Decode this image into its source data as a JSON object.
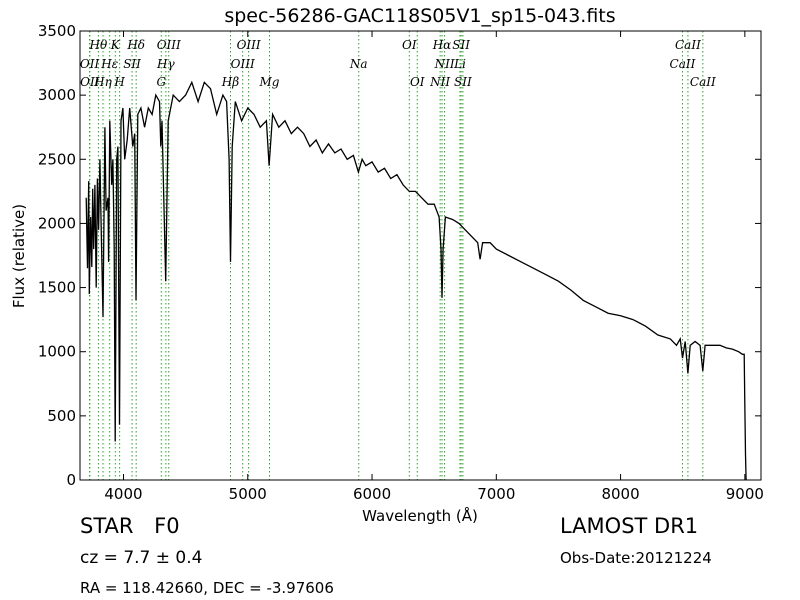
{
  "chart_data": {
    "type": "line",
    "title": "spec-56286-GAC118S05V1_sp15-043.fits",
    "xlabel": "Wavelength (Å)",
    "ylabel": "Flux (relative)",
    "xlim": [
      3650,
      9130
    ],
    "ylim": [
      0,
      3500
    ],
    "xticks": [
      4000,
      5000,
      6000,
      7000,
      8000,
      9000
    ],
    "yticks": [
      0,
      500,
      1000,
      1500,
      2000,
      2500,
      3000,
      3500
    ],
    "grid": false,
    "line_color": "#000000",
    "marker_line_color": "#2ca02c",
    "series": [
      {
        "points": [
          [
            3700,
            2200
          ],
          [
            3710,
            1650
          ],
          [
            3720,
            2330
          ],
          [
            3725,
            1450
          ],
          [
            3735,
            2050
          ],
          [
            3745,
            1660
          ],
          [
            3752,
            2270
          ],
          [
            3760,
            1800
          ],
          [
            3770,
            2300
          ],
          [
            3780,
            1500
          ],
          [
            3790,
            2350
          ],
          [
            3800,
            1950
          ],
          [
            3810,
            2500
          ],
          [
            3820,
            2000
          ],
          [
            3835,
            1270
          ],
          [
            3850,
            2750
          ],
          [
            3860,
            2100
          ],
          [
            3875,
            2200
          ],
          [
            3880,
            1700
          ],
          [
            3890,
            2800
          ],
          [
            3905,
            2300
          ],
          [
            3915,
            2500
          ],
          [
            3925,
            1800
          ],
          [
            3933,
            300
          ],
          [
            3945,
            2500
          ],
          [
            3955,
            2600
          ],
          [
            3968,
            430
          ],
          [
            3980,
            2800
          ],
          [
            3995,
            2900
          ],
          [
            4010,
            2500
          ],
          [
            4030,
            2650
          ],
          [
            4050,
            2900
          ],
          [
            4075,
            2600
          ],
          [
            4090,
            2700
          ],
          [
            4101,
            1400
          ],
          [
            4115,
            2850
          ],
          [
            4140,
            2900
          ],
          [
            4170,
            2750
          ],
          [
            4200,
            2900
          ],
          [
            4230,
            2850
          ],
          [
            4260,
            3000
          ],
          [
            4290,
            2950
          ],
          [
            4300,
            2600
          ],
          [
            4310,
            2800
          ],
          [
            4340,
            1550
          ],
          [
            4360,
            2800
          ],
          [
            4400,
            3000
          ],
          [
            4450,
            2950
          ],
          [
            4500,
            3000
          ],
          [
            4550,
            3100
          ],
          [
            4600,
            2950
          ],
          [
            4650,
            3100
          ],
          [
            4700,
            3050
          ],
          [
            4750,
            2850
          ],
          [
            4800,
            3000
          ],
          [
            4830,
            2950
          ],
          [
            4850,
            2500
          ],
          [
            4861,
            1700
          ],
          [
            4875,
            2600
          ],
          [
            4900,
            2950
          ],
          [
            4950,
            2800
          ],
          [
            5000,
            2900
          ],
          [
            5050,
            2850
          ],
          [
            5100,
            2750
          ],
          [
            5150,
            2800
          ],
          [
            5172,
            2450
          ],
          [
            5200,
            2850
          ],
          [
            5250,
            2750
          ],
          [
            5300,
            2800
          ],
          [
            5350,
            2700
          ],
          [
            5400,
            2750
          ],
          [
            5450,
            2700
          ],
          [
            5500,
            2600
          ],
          [
            5550,
            2650
          ],
          [
            5600,
            2550
          ],
          [
            5650,
            2620
          ],
          [
            5700,
            2550
          ],
          [
            5750,
            2580
          ],
          [
            5800,
            2500
          ],
          [
            5850,
            2530
          ],
          [
            5890,
            2400
          ],
          [
            5920,
            2500
          ],
          [
            5950,
            2450
          ],
          [
            6000,
            2480
          ],
          [
            6050,
            2400
          ],
          [
            6100,
            2430
          ],
          [
            6150,
            2350
          ],
          [
            6200,
            2380
          ],
          [
            6250,
            2300
          ],
          [
            6300,
            2250
          ],
          [
            6350,
            2250
          ],
          [
            6400,
            2200
          ],
          [
            6450,
            2150
          ],
          [
            6500,
            2150
          ],
          [
            6540,
            2050
          ],
          [
            6555,
            1800
          ],
          [
            6563,
            1420
          ],
          [
            6572,
            1800
          ],
          [
            6590,
            2050
          ],
          [
            6650,
            2030
          ],
          [
            6700,
            2000
          ],
          [
            6750,
            1950
          ],
          [
            6800,
            1900
          ],
          [
            6850,
            1850
          ],
          [
            6870,
            1720
          ],
          [
            6890,
            1850
          ],
          [
            6950,
            1850
          ],
          [
            7000,
            1800
          ],
          [
            7100,
            1750
          ],
          [
            7200,
            1700
          ],
          [
            7300,
            1650
          ],
          [
            7400,
            1600
          ],
          [
            7500,
            1550
          ],
          [
            7600,
            1480
          ],
          [
            7700,
            1400
          ],
          [
            7800,
            1350
          ],
          [
            7900,
            1300
          ],
          [
            8000,
            1280
          ],
          [
            8100,
            1250
          ],
          [
            8200,
            1200
          ],
          [
            8300,
            1130
          ],
          [
            8400,
            1100
          ],
          [
            8450,
            1050
          ],
          [
            8480,
            1100
          ],
          [
            8498,
            950
          ],
          [
            8520,
            1080
          ],
          [
            8542,
            830
          ],
          [
            8560,
            1050
          ],
          [
            8600,
            1080
          ],
          [
            8640,
            1050
          ],
          [
            8662,
            850
          ],
          [
            8680,
            1050
          ],
          [
            8750,
            1050
          ],
          [
            8800,
            1050
          ],
          [
            8850,
            1030
          ],
          [
            8900,
            1020
          ],
          [
            8950,
            1000
          ],
          [
            8980,
            980
          ],
          [
            8995,
            980
          ],
          [
            9000,
            600
          ],
          [
            9005,
            200
          ],
          [
            9010,
            0
          ]
        ]
      }
    ],
    "lines": [
      {
        "name": "Hθ",
        "x": 3798,
        "row": 0
      },
      {
        "name": "K",
        "x": 3934,
        "row": 0
      },
      {
        "name": "Hδ",
        "x": 4102,
        "row": 0
      },
      {
        "name": "OIII",
        "x": 4364,
        "row": 0
      },
      {
        "name": "OIII",
        "x": 5007,
        "row": 0
      },
      {
        "name": "OI",
        "x": 6300,
        "row": 0
      },
      {
        "name": "Hα",
        "x": 6563,
        "row": 0
      },
      {
        "name": "SII",
        "x": 6717,
        "row": 0
      },
      {
        "name": "CaII",
        "x": 8542,
        "row": 0
      },
      {
        "name": "OII",
        "x": 3727,
        "row": 1
      },
      {
        "name": "Hε",
        "x": 3889,
        "row": 1
      },
      {
        "name": "SII",
        "x": 4069,
        "row": 1
      },
      {
        "name": "Hγ",
        "x": 4341,
        "row": 1
      },
      {
        "name": "OIII",
        "x": 4959,
        "row": 1
      },
      {
        "name": "Na",
        "x": 5893,
        "row": 1
      },
      {
        "name": "NII",
        "x": 6584,
        "row": 1
      },
      {
        "name": "Li",
        "x": 6708,
        "row": 1
      },
      {
        "name": "CaII",
        "x": 8498,
        "row": 1
      },
      {
        "name": "OII",
        "x": 3729,
        "row": 2
      },
      {
        "name": "Hη",
        "x": 3835,
        "row": 2
      },
      {
        "name": "H",
        "x": 3969,
        "row": 2
      },
      {
        "name": "G",
        "x": 4304,
        "row": 2
      },
      {
        "name": "Hβ",
        "x": 4861,
        "row": 2
      },
      {
        "name": "Mg",
        "x": 5175,
        "row": 2
      },
      {
        "name": "OI",
        "x": 6364,
        "row": 2
      },
      {
        "name": "NII",
        "x": 6548,
        "row": 2
      },
      {
        "name": "SII",
        "x": 6731,
        "row": 2
      },
      {
        "name": "CaII",
        "x": 8662,
        "row": 2
      }
    ]
  },
  "info": {
    "object_class": "STAR",
    "subclass": "F0",
    "redshift": "cz = 7.7 ± 0.4",
    "coords": "RA = 118.42660, DEC = -3.97606",
    "survey": "LAMOST DR1",
    "obs_date": "Obs-Date:20121224"
  }
}
